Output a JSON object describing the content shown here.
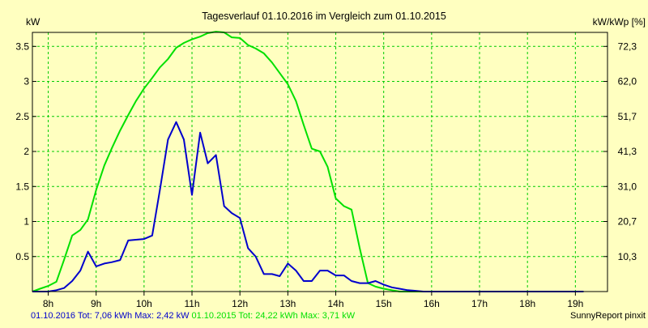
{
  "chart_data": {
    "type": "line",
    "title": "Tagesverlauf 01.10.2016 im Vergleich zum 01.10.2015",
    "ylabel_left": "kW",
    "ylabel_right": "kW/kWp [%]",
    "ylim": [
      0,
      3.7
    ],
    "left_ticks": [
      "0.5",
      "1",
      "1.5",
      "2",
      "2.5",
      "3",
      "3.5"
    ],
    "left_tick_values": [
      0.5,
      1,
      1.5,
      2,
      2.5,
      3,
      3.5
    ],
    "right_ticks": [
      "10,3",
      "20,7",
      "31,0",
      "41,3",
      "51,7",
      "62,0",
      "72,3"
    ],
    "x_ticks": [
      "8h",
      "9h",
      "10h",
      "11h",
      "12h",
      "13h",
      "14h",
      "15h",
      "16h",
      "17h",
      "18h",
      "19h"
    ],
    "x_tick_values": [
      8,
      9,
      10,
      11,
      12,
      13,
      14,
      15,
      16,
      17,
      18,
      19
    ],
    "xlim": [
      7.67,
      19.67
    ],
    "grid": true,
    "footer_credit": "SunnyReport pinxit",
    "series": [
      {
        "name": "01.10.2016",
        "legend": "01.10.2016 Tot: 7,06 kWh Max: 2,42 kW",
        "color": "#0000cc",
        "x": [
          7.67,
          7.83,
          8.0,
          8.17,
          8.33,
          8.5,
          8.67,
          8.83,
          9.0,
          9.17,
          9.33,
          9.5,
          9.67,
          9.83,
          10.0,
          10.17,
          10.33,
          10.5,
          10.67,
          10.83,
          11.0,
          11.17,
          11.33,
          11.5,
          11.67,
          11.83,
          12.0,
          12.17,
          12.33,
          12.5,
          12.67,
          12.83,
          13.0,
          13.17,
          13.33,
          13.5,
          13.67,
          13.83,
          14.0,
          14.17,
          14.33,
          14.5,
          14.67,
          14.83,
          15.0,
          15.17,
          15.33,
          15.5,
          15.67,
          15.83,
          16.0,
          16.17,
          16.33,
          16.5,
          16.67,
          16.83,
          17.0,
          17.17,
          17.33,
          17.5,
          17.67,
          17.83,
          18.0,
          18.17,
          18.33,
          18.5,
          18.67,
          18.83,
          19.0,
          19.17
        ],
        "values": [
          0.0,
          0.0,
          0.0,
          0.02,
          0.05,
          0.15,
          0.3,
          0.57,
          0.36,
          0.4,
          0.42,
          0.45,
          0.73,
          0.74,
          0.75,
          0.8,
          1.45,
          2.17,
          2.42,
          2.17,
          1.38,
          2.27,
          1.83,
          1.95,
          1.22,
          1.12,
          1.05,
          0.62,
          0.5,
          0.25,
          0.25,
          0.22,
          0.4,
          0.3,
          0.15,
          0.15,
          0.3,
          0.3,
          0.23,
          0.23,
          0.15,
          0.12,
          0.12,
          0.15,
          0.1,
          0.06,
          0.04,
          0.02,
          0.01,
          0.0,
          0.0,
          0.0,
          0.0,
          0.0,
          0.0,
          0.0,
          0.0,
          0.0,
          0.0,
          0.0,
          0.0,
          0.0,
          0.0,
          0.0,
          0.0,
          0.0,
          0.0,
          0.0,
          0.0,
          0.0
        ]
      },
      {
        "name": "01.10.2015",
        "legend": "01.10.2015 Tot: 24,22 kWh Max: 3,71 kW",
        "color": "#00e000",
        "x": [
          7.67,
          7.83,
          8.0,
          8.17,
          8.33,
          8.5,
          8.67,
          8.83,
          9.0,
          9.17,
          9.33,
          9.5,
          9.67,
          9.83,
          10.0,
          10.17,
          10.33,
          10.5,
          10.67,
          10.83,
          11.0,
          11.17,
          11.33,
          11.5,
          11.67,
          11.83,
          12.0,
          12.17,
          12.33,
          12.5,
          12.67,
          12.83,
          13.0,
          13.17,
          13.33,
          13.5,
          13.67,
          13.83,
          14.0,
          14.17,
          14.33,
          14.5,
          14.67,
          14.83,
          15.0,
          15.17,
          15.33,
          15.5,
          15.67,
          15.83,
          16.0,
          16.17,
          16.33,
          16.5,
          16.67,
          16.83,
          17.0,
          17.17,
          17.33,
          17.5,
          17.67,
          17.83,
          18.0,
          18.17,
          18.33,
          18.5,
          18.67,
          18.83,
          19.0,
          19.17
        ],
        "values": [
          0.0,
          0.04,
          0.08,
          0.14,
          0.45,
          0.8,
          0.88,
          1.03,
          1.45,
          1.8,
          2.05,
          2.3,
          2.52,
          2.72,
          2.9,
          3.05,
          3.2,
          3.32,
          3.48,
          3.55,
          3.6,
          3.64,
          3.69,
          3.71,
          3.7,
          3.63,
          3.62,
          3.52,
          3.47,
          3.4,
          3.27,
          3.12,
          2.96,
          2.72,
          2.38,
          2.04,
          2.0,
          1.78,
          1.33,
          1.22,
          1.17,
          0.62,
          0.12,
          0.07,
          0.04,
          0.02,
          0.0,
          0.0,
          0.0,
          0.0,
          0.0,
          0.0,
          0.0,
          0.0,
          0.0,
          0.0,
          0.0,
          0.0,
          0.0,
          0.0,
          0.0,
          0.0,
          0.0,
          0.0,
          0.0,
          0.0,
          0.0,
          0.0,
          0.0,
          0.0
        ]
      }
    ]
  }
}
